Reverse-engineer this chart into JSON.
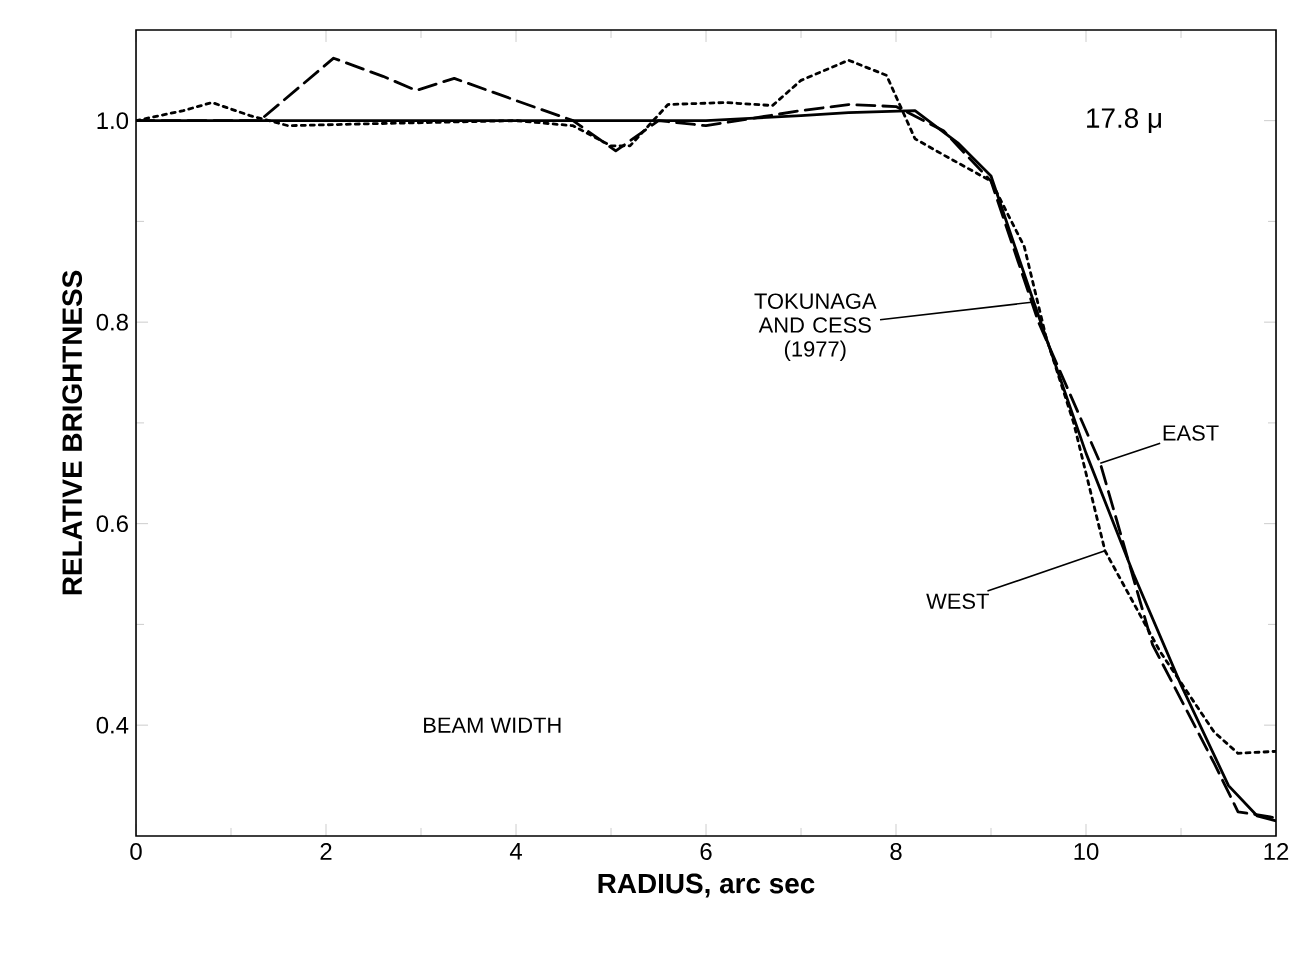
{
  "chart_data": {
    "type": "line",
    "xlabel": "RADIUS, arc sec",
    "ylabel": "RELATIVE BRIGHTNESS",
    "xlim": [
      0,
      12
    ],
    "ylim": [
      0.29,
      1.09
    ],
    "xticks": [
      0,
      {
        "value": 1,
        "label": null
      },
      2,
      {
        "value": 3,
        "label": null
      },
      4,
      {
        "value": 5,
        "label": null
      },
      6,
      {
        "value": 7,
        "label": null
      },
      8,
      {
        "value": 9,
        "label": null
      },
      10,
      {
        "value": 11,
        "label": null
      },
      12
    ],
    "yticks": [
      0.4,
      {
        "value": 0.5,
        "label": null
      },
      0.6,
      {
        "value": 0.7,
        "label": null
      },
      0.8,
      {
        "value": 0.9,
        "label": null
      },
      {
        "value": 1.0,
        "label": "1.0"
      }
    ],
    "grid": false,
    "marker": "none",
    "series": [
      {
        "color": "#000000",
        "line_style": "solid",
        "x": [
          0,
          1,
          2,
          3,
          4,
          5,
          6,
          7,
          7.5,
          8.2,
          8.65,
          9.0,
          9.45,
          10.0,
          10.5,
          11.0,
          11.5,
          11.8,
          12.0
        ],
        "values": [
          1.0,
          1.0,
          1.0,
          1.0,
          1.0,
          1.0,
          1.0,
          1.005,
          1.008,
          1.01,
          0.978,
          0.945,
          0.82,
          0.67,
          0.55,
          0.44,
          0.34,
          0.31,
          0.305
        ]
      },
      {
        "color": "#000000",
        "line_style": "dashed",
        "x": [
          0,
          0.6,
          1.3,
          2.08,
          2.6,
          2.95,
          3.35,
          4.0,
          4.6,
          5.05,
          5.5,
          6.0,
          7.0,
          7.5,
          8.0,
          8.5,
          9.0,
          9.5,
          10.15,
          10.7,
          11.35,
          11.6,
          12.0
        ],
        "values": [
          1.0,
          1.0,
          1.0,
          1.062,
          1.044,
          1.03,
          1.042,
          1.02,
          1.0,
          0.97,
          1.0,
          0.995,
          1.01,
          1.016,
          1.014,
          0.99,
          0.94,
          0.8,
          0.66,
          0.48,
          0.362,
          0.314,
          0.308
        ]
      },
      {
        "color": "#000000",
        "line_style": "dotted",
        "x": [
          0,
          0.5,
          0.8,
          1.2,
          1.6,
          2.5,
          4.0,
          4.6,
          5.0,
          5.2,
          5.6,
          6.2,
          6.7,
          7.0,
          7.5,
          7.9,
          8.2,
          8.5,
          9.0,
          9.35,
          9.58,
          9.87,
          10.2,
          10.78,
          11.35,
          11.6,
          12.0
        ],
        "values": [
          1.0,
          1.01,
          1.018,
          1.005,
          0.995,
          0.997,
          1.0,
          0.995,
          0.975,
          0.975,
          1.016,
          1.018,
          1.015,
          1.04,
          1.06,
          1.045,
          0.982,
          0.966,
          0.94,
          0.875,
          0.785,
          0.7,
          0.573,
          0.473,
          0.393,
          0.372,
          0.374
        ]
      }
    ],
    "annotations": [
      {
        "text": "TOKUNAGA AND CESS (1977)",
        "x": 9.45,
        "y": 0.82
      },
      {
        "text": "EAST",
        "x": 10.15,
        "y": 0.66
      },
      {
        "text": "WEST",
        "x": 10.2,
        "y": 0.573
      },
      "17.8 μ",
      "BEAM WIDTH"
    ]
  }
}
